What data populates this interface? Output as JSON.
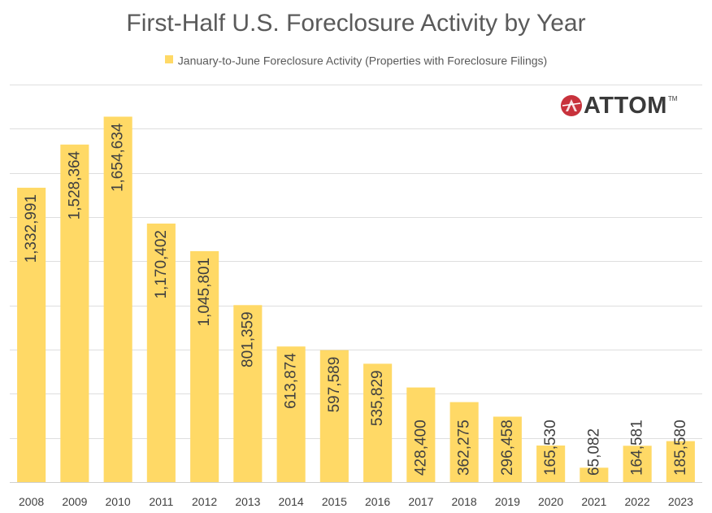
{
  "chart_data": {
    "type": "bar",
    "title": "First-Half U.S. Foreclosure Activity by Year",
    "legend": "January-to-June Foreclosure Activity (Properties with Foreclosure Filings)",
    "categories": [
      "2008",
      "2009",
      "2010",
      "2011",
      "2012",
      "2013",
      "2014",
      "2015",
      "2016",
      "2017",
      "2018",
      "2019",
      "2020",
      "2021",
      "2022",
      "2023"
    ],
    "values": [
      1332991,
      1528364,
      1654634,
      1170402,
      1045801,
      801359,
      613874,
      597589,
      535829,
      428400,
      362275,
      296458,
      165530,
      65082,
      164581,
      185580
    ],
    "labels": [
      "1,332,991",
      "1,528,364",
      "1,654,634",
      "1,170,402",
      "1,045,801",
      "801,359",
      "613,874",
      "597,589",
      "535,829",
      "428,400",
      "362,275",
      "296,458",
      "165,530",
      "65,082",
      "164,581",
      "185,580"
    ],
    "ylim": [
      0,
      1800000
    ],
    "grid": true,
    "legend_position": "top",
    "bar_color": "#ffd966",
    "xlabel": "",
    "ylabel": ""
  },
  "logo": {
    "text": "ATTOM",
    "mark": "TM",
    "accent_color": "#c8323c"
  }
}
